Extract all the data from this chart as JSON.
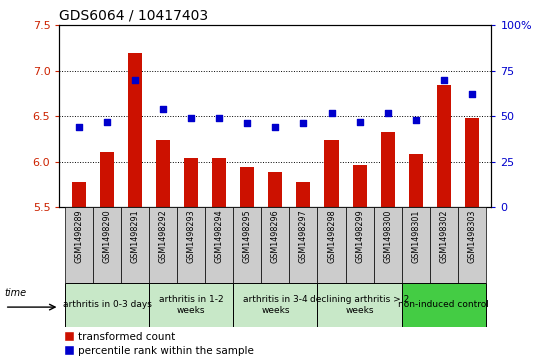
{
  "title": "GDS6064 / 10417403",
  "samples": [
    "GSM1498289",
    "GSM1498290",
    "GSM1498291",
    "GSM1498292",
    "GSM1498293",
    "GSM1498294",
    "GSM1498295",
    "GSM1498296",
    "GSM1498297",
    "GSM1498298",
    "GSM1498299",
    "GSM1498300",
    "GSM1498301",
    "GSM1498302",
    "GSM1498303"
  ],
  "red_values": [
    5.78,
    6.1,
    7.2,
    6.24,
    6.04,
    6.04,
    5.94,
    5.88,
    5.78,
    6.24,
    5.96,
    6.32,
    6.08,
    6.84,
    6.48
  ],
  "blue_values": [
    44,
    47,
    70,
    54,
    49,
    49,
    46,
    44,
    46,
    52,
    47,
    52,
    48,
    70,
    62
  ],
  "ylim_left": [
    5.5,
    7.5
  ],
  "ylim_right": [
    0,
    100
  ],
  "yticks_left": [
    5.5,
    6.0,
    6.5,
    7.0,
    7.5
  ],
  "yticks_right": [
    0,
    25,
    50,
    75,
    100
  ],
  "bar_color": "#CC1100",
  "dot_color": "#0000CC",
  "groups": [
    {
      "label": "arthritis in 0-3 days",
      "indices": [
        0,
        1,
        2
      ],
      "color": "#c8e8c8"
    },
    {
      "label": "arthritis in 1-2\nweeks",
      "indices": [
        3,
        4,
        5
      ],
      "color": "#c8e8c8"
    },
    {
      "label": "arthritis in 3-4\nweeks",
      "indices": [
        6,
        7,
        8
      ],
      "color": "#c8e8c8"
    },
    {
      "label": "declining arthritis > 2\nweeks",
      "indices": [
        9,
        10,
        11
      ],
      "color": "#c8e8c8"
    },
    {
      "label": "non-induced control",
      "indices": [
        12,
        13,
        14
      ],
      "color": "#44cc44"
    }
  ],
  "bar_width": 0.5,
  "baseline": 5.5,
  "sample_box_color": "#cccccc",
  "title_fontsize": 10,
  "axis_fontsize": 8,
  "label_fontsize": 6.5,
  "legend_fontsize": 7.5
}
